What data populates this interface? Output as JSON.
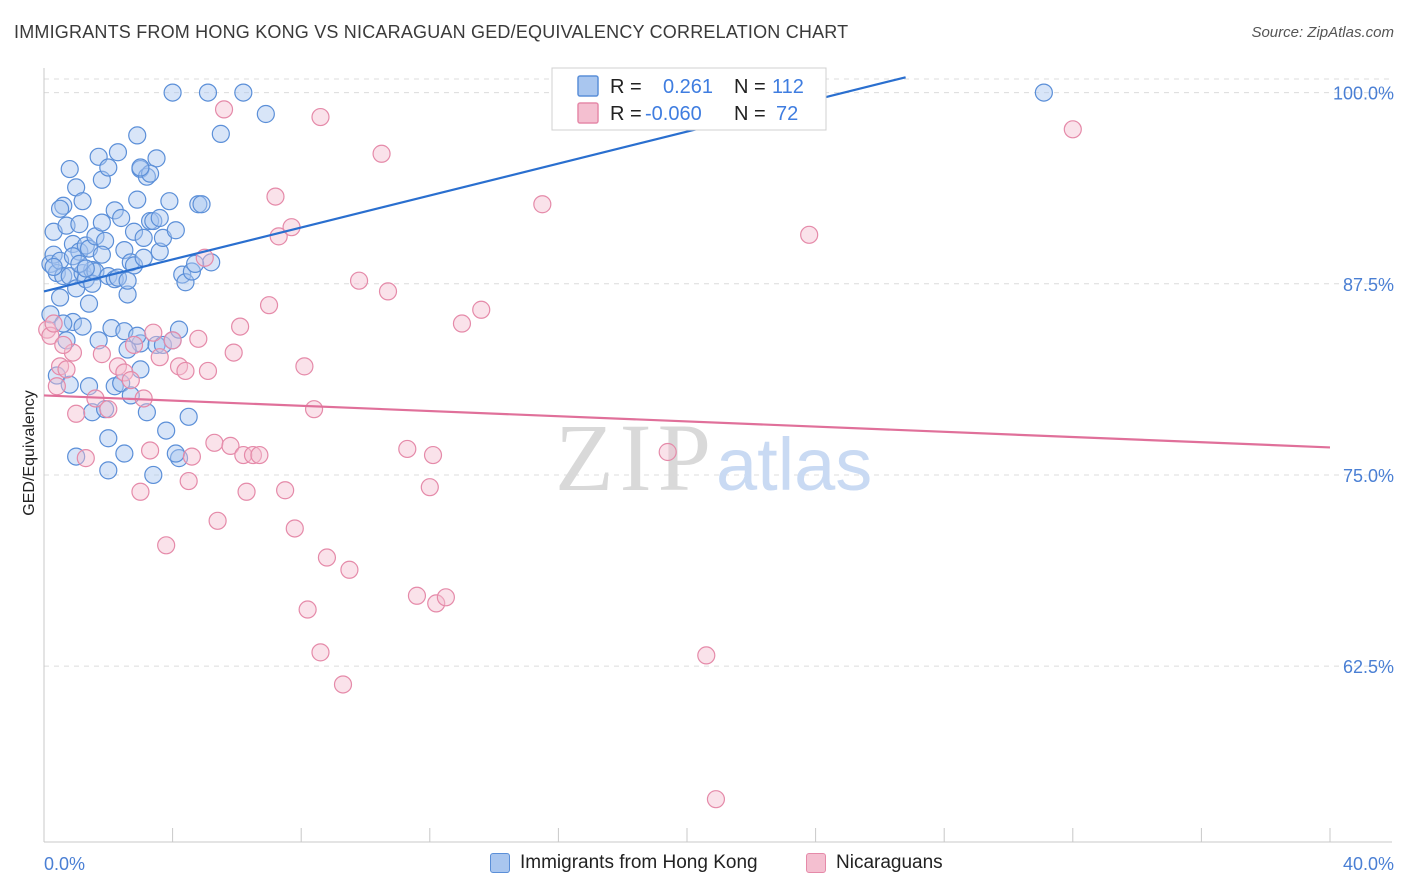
{
  "header": {
    "title": "IMMIGRANTS FROM HONG KONG VS NICARAGUAN GED/EQUIVALENCY CORRELATION CHART",
    "source": "Source: ZipAtlas.com"
  },
  "watermark": {
    "zip": "ZIP",
    "atlas": "atlas"
  },
  "colors": {
    "blue_fill": "#a9c6ef",
    "blue_stroke": "#5b8fd8",
    "blue_line": "#2a6fcf",
    "pink_fill": "#f4bfd0",
    "pink_stroke": "#e58aa9",
    "pink_line": "#e0709a",
    "tick_text": "#4a7fd4",
    "grid": "#dcdcdc"
  },
  "legend": {
    "rows": [
      {
        "r_label": "R =",
        "r_value": "0.261",
        "n_label": "N =",
        "n_value": "112"
      },
      {
        "r_label": "R =",
        "r_value": "-0.060",
        "n_label": "N =",
        "n_value": "72"
      }
    ]
  },
  "bottom_legend": [
    {
      "label": "Immigrants from Hong Kong"
    },
    {
      "label": "Nicaraguans"
    }
  ],
  "chart_data": {
    "type": "scatter",
    "title": "IMMIGRANTS FROM HONG KONG VS NICARAGUAN GED/EQUIVALENCY CORRELATION CHART",
    "xlabel": "",
    "ylabel": "GED/Equivalency",
    "xlim": [
      0,
      40
    ],
    "ylim": [
      51,
      102
    ],
    "x_tick_labels": [
      "0.0%",
      "40.0%"
    ],
    "y_ticks": [
      62.5,
      75.0,
      87.5,
      100.0
    ],
    "y_tick_labels": [
      "62.5%",
      "75.0%",
      "87.5%",
      "100.0%"
    ],
    "series": [
      {
        "name": "Immigrants from Hong Kong",
        "r": 0.261,
        "n": 112,
        "trend": {
          "x0": 0.0,
          "y0": 87.0,
          "x1": 26.8,
          "y1": 101.0
        },
        "points": [
          [
            0.2,
            88.8
          ],
          [
            0.3,
            89.4
          ],
          [
            0.3,
            90.9
          ],
          [
            0.4,
            88.2
          ],
          [
            0.5,
            86.6
          ],
          [
            0.5,
            89.0
          ],
          [
            0.6,
            92.6
          ],
          [
            0.6,
            88.0
          ],
          [
            0.7,
            91.3
          ],
          [
            0.7,
            83.8
          ],
          [
            0.8,
            95.0
          ],
          [
            0.8,
            88.0
          ],
          [
            0.9,
            85.0
          ],
          [
            0.9,
            90.1
          ],
          [
            1.0,
            93.8
          ],
          [
            1.0,
            87.2
          ],
          [
            1.1,
            89.6
          ],
          [
            1.1,
            91.4
          ],
          [
            1.2,
            88.2
          ],
          [
            1.2,
            92.9
          ],
          [
            1.3,
            87.8
          ],
          [
            1.3,
            90.0
          ],
          [
            1.4,
            89.8
          ],
          [
            1.4,
            86.2
          ],
          [
            1.5,
            88.4
          ],
          [
            1.5,
            87.5
          ],
          [
            1.6,
            90.6
          ],
          [
            1.6,
            88.3
          ],
          [
            1.7,
            95.8
          ],
          [
            1.8,
            94.3
          ],
          [
            1.8,
            91.5
          ],
          [
            1.9,
            90.3
          ],
          [
            2.0,
            95.1
          ],
          [
            2.0,
            88.0
          ],
          [
            2.1,
            84.6
          ],
          [
            2.2,
            92.3
          ],
          [
            2.2,
            87.8
          ],
          [
            2.3,
            96.1
          ],
          [
            2.4,
            91.8
          ],
          [
            2.5,
            84.4
          ],
          [
            2.5,
            89.7
          ],
          [
            2.6,
            86.8
          ],
          [
            2.7,
            88.9
          ],
          [
            2.8,
            90.9
          ],
          [
            2.9,
            93.0
          ],
          [
            2.9,
            97.2
          ],
          [
            3.0,
            95.0
          ],
          [
            3.0,
            83.6
          ],
          [
            3.1,
            90.5
          ],
          [
            3.2,
            94.5
          ],
          [
            3.3,
            91.6
          ],
          [
            3.4,
            91.6
          ],
          [
            3.5,
            95.7
          ],
          [
            3.6,
            89.6
          ],
          [
            3.7,
            90.5
          ],
          [
            3.8,
            77.9
          ],
          [
            3.9,
            92.9
          ],
          [
            4.0,
            100.0
          ],
          [
            4.1,
            91.0
          ],
          [
            4.2,
            76.1
          ],
          [
            4.3,
            88.1
          ],
          [
            4.4,
            87.6
          ],
          [
            4.5,
            78.8
          ],
          [
            4.6,
            88.3
          ],
          [
            4.8,
            92.7
          ],
          [
            4.9,
            92.7
          ],
          [
            5.1,
            100.0
          ],
          [
            5.2,
            88.9
          ],
          [
            5.5,
            97.3
          ],
          [
            6.2,
            100.0
          ],
          [
            6.9,
            98.6
          ],
          [
            0.2,
            85.5
          ],
          [
            0.4,
            81.5
          ],
          [
            0.6,
            84.9
          ],
          [
            0.8,
            80.9
          ],
          [
            1.0,
            76.2
          ],
          [
            1.2,
            84.7
          ],
          [
            1.4,
            80.8
          ],
          [
            1.5,
            79.1
          ],
          [
            1.7,
            83.8
          ],
          [
            1.9,
            79.3
          ],
          [
            2.0,
            77.4
          ],
          [
            2.0,
            75.3
          ],
          [
            2.2,
            80.8
          ],
          [
            2.4,
            81.0
          ],
          [
            2.5,
            76.4
          ],
          [
            2.6,
            83.2
          ],
          [
            2.7,
            80.2
          ],
          [
            2.9,
            84.1
          ],
          [
            3.0,
            81.9
          ],
          [
            3.2,
            79.1
          ],
          [
            3.4,
            75.0
          ],
          [
            3.5,
            83.5
          ],
          [
            3.7,
            83.5
          ],
          [
            4.0,
            83.8
          ],
          [
            4.1,
            76.4
          ],
          [
            4.2,
            84.5
          ],
          [
            0.3,
            88.6
          ],
          [
            0.5,
            92.4
          ],
          [
            0.9,
            89.3
          ],
          [
            1.1,
            88.8
          ],
          [
            1.3,
            88.5
          ],
          [
            1.8,
            89.4
          ],
          [
            2.3,
            87.9
          ],
          [
            2.6,
            87.7
          ],
          [
            2.8,
            88.7
          ],
          [
            3.1,
            89.2
          ],
          [
            3.3,
            94.7
          ],
          [
            3.6,
            91.8
          ],
          [
            4.7,
            88.8
          ],
          [
            31.1,
            100.0
          ],
          [
            3.0,
            95.1
          ]
        ]
      },
      {
        "name": "Nicaraguans",
        "r": -0.06,
        "n": 72,
        "trend": {
          "x0": 0.0,
          "y0": 80.2,
          "x1": 40.0,
          "y1": 76.8
        },
        "points": [
          [
            0.1,
            84.5
          ],
          [
            0.2,
            84.1
          ],
          [
            0.4,
            80.8
          ],
          [
            0.5,
            82.1
          ],
          [
            0.7,
            81.9
          ],
          [
            0.9,
            83.0
          ],
          [
            1.0,
            79.0
          ],
          [
            1.3,
            76.1
          ],
          [
            1.6,
            80.0
          ],
          [
            1.8,
            82.9
          ],
          [
            2.0,
            79.3
          ],
          [
            2.3,
            82.1
          ],
          [
            2.5,
            81.7
          ],
          [
            2.7,
            81.2
          ],
          [
            2.8,
            83.5
          ],
          [
            3.0,
            73.9
          ],
          [
            3.1,
            80.0
          ],
          [
            3.3,
            76.6
          ],
          [
            3.4,
            84.3
          ],
          [
            3.6,
            82.7
          ],
          [
            3.8,
            70.4
          ],
          [
            4.0,
            83.8
          ],
          [
            4.2,
            82.1
          ],
          [
            4.4,
            81.8
          ],
          [
            4.5,
            74.6
          ],
          [
            4.6,
            76.2
          ],
          [
            4.8,
            83.9
          ],
          [
            5.0,
            89.2
          ],
          [
            5.1,
            81.8
          ],
          [
            5.3,
            77.1
          ],
          [
            5.4,
            72.0
          ],
          [
            5.6,
            98.9
          ],
          [
            5.8,
            76.9
          ],
          [
            5.9,
            83.0
          ],
          [
            6.1,
            84.7
          ],
          [
            6.2,
            76.3
          ],
          [
            6.3,
            73.9
          ],
          [
            6.5,
            76.3
          ],
          [
            6.7,
            76.3
          ],
          [
            7.0,
            86.1
          ],
          [
            7.2,
            93.2
          ],
          [
            7.3,
            90.6
          ],
          [
            7.5,
            74.0
          ],
          [
            7.7,
            91.2
          ],
          [
            7.8,
            71.5
          ],
          [
            8.1,
            82.1
          ],
          [
            8.2,
            66.2
          ],
          [
            8.4,
            79.3
          ],
          [
            8.6,
            98.4
          ],
          [
            8.6,
            63.4
          ],
          [
            8.8,
            69.6
          ],
          [
            9.3,
            61.3
          ],
          [
            9.5,
            68.8
          ],
          [
            9.8,
            87.7
          ],
          [
            10.5,
            96.0
          ],
          [
            10.7,
            87.0
          ],
          [
            11.3,
            76.7
          ],
          [
            11.6,
            67.1
          ],
          [
            12.0,
            74.2
          ],
          [
            12.1,
            76.3
          ],
          [
            12.2,
            66.6
          ],
          [
            12.5,
            67.0
          ],
          [
            13.0,
            84.9
          ],
          [
            13.6,
            85.8
          ],
          [
            15.5,
            92.7
          ],
          [
            19.4,
            76.5
          ],
          [
            20.6,
            63.2
          ],
          [
            20.9,
            53.8
          ],
          [
            23.8,
            90.7
          ],
          [
            32.0,
            97.6
          ],
          [
            0.3,
            84.9
          ],
          [
            0.6,
            83.5
          ]
        ]
      }
    ]
  }
}
